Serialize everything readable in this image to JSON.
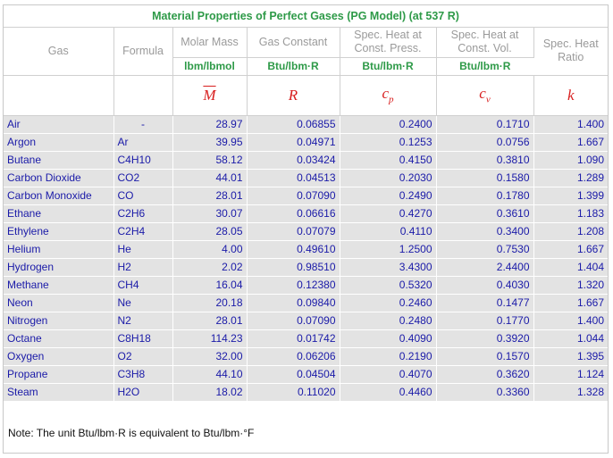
{
  "title": "Material Properties of Perfect Gases (PG Model) (at 537 R)",
  "headers": {
    "gas": "Gas",
    "formula": "Formula",
    "molar_mass": "Molar Mass",
    "gas_constant": "Gas Constant",
    "cp_line1": "Spec. Heat at",
    "cp_line2": "Const. Press.",
    "cv_line1": "Spec. Heat at",
    "cv_line2": "Const. Vol.",
    "k_line1": "Spec. Heat",
    "k_line2": "Ratio"
  },
  "units": {
    "molar_mass": "lbm/lbmol",
    "gas_constant": "Btu/lbm·R",
    "cp": "Btu/lbm·R",
    "cv": "Btu/lbm·R"
  },
  "symbols": {
    "molar_mass": "M",
    "gas_constant": "R",
    "cp_base": "c",
    "cp_sub": "p",
    "cv_base": "c",
    "cv_sub": "v",
    "k": "k"
  },
  "rows": [
    {
      "gas": "Air",
      "formula": "-",
      "M": "28.97",
      "R": "0.06855",
      "cp": "0.2400",
      "cv": "0.1710",
      "k": "1.400"
    },
    {
      "gas": "Argon",
      "formula": "Ar",
      "M": "39.95",
      "R": "0.04971",
      "cp": "0.1253",
      "cv": "0.0756",
      "k": "1.667"
    },
    {
      "gas": "Butane",
      "formula": "C4H10",
      "M": "58.12",
      "R": "0.03424",
      "cp": "0.4150",
      "cv": "0.3810",
      "k": "1.090"
    },
    {
      "gas": "Carbon Dioxide",
      "formula": "CO2",
      "M": "44.01",
      "R": "0.04513",
      "cp": "0.2030",
      "cv": "0.1580",
      "k": "1.289"
    },
    {
      "gas": "Carbon Monoxide",
      "formula": "CO",
      "M": "28.01",
      "R": "0.07090",
      "cp": "0.2490",
      "cv": "0.1780",
      "k": "1.399"
    },
    {
      "gas": "Ethane",
      "formula": "C2H6",
      "M": "30.07",
      "R": "0.06616",
      "cp": "0.4270",
      "cv": "0.3610",
      "k": "1.183"
    },
    {
      "gas": "Ethylene",
      "formula": "C2H4",
      "M": "28.05",
      "R": "0.07079",
      "cp": "0.4110",
      "cv": "0.3400",
      "k": "1.208"
    },
    {
      "gas": "Helium",
      "formula": "He",
      "M": "4.00",
      "R": "0.49610",
      "cp": "1.2500",
      "cv": "0.7530",
      "k": "1.667"
    },
    {
      "gas": "Hydrogen",
      "formula": "H2",
      "M": "2.02",
      "R": "0.98510",
      "cp": "3.4300",
      "cv": "2.4400",
      "k": "1.404"
    },
    {
      "gas": "Methane",
      "formula": "CH4",
      "M": "16.04",
      "R": "0.12380",
      "cp": "0.5320",
      "cv": "0.4030",
      "k": "1.320"
    },
    {
      "gas": "Neon",
      "formula": "Ne",
      "M": "20.18",
      "R": "0.09840",
      "cp": "0.2460",
      "cv": "0.1477",
      "k": "1.667"
    },
    {
      "gas": "Nitrogen",
      "formula": "N2",
      "M": "28.01",
      "R": "0.07090",
      "cp": "0.2480",
      "cv": "0.1770",
      "k": "1.400"
    },
    {
      "gas": "Octane",
      "formula": "C8H18",
      "M": "114.23",
      "R": "0.01742",
      "cp": "0.4090",
      "cv": "0.3920",
      "k": "1.044"
    },
    {
      "gas": "Oxygen",
      "formula": "O2",
      "M": "32.00",
      "R": "0.06206",
      "cp": "0.2190",
      "cv": "0.1570",
      "k": "1.395"
    },
    {
      "gas": "Propane",
      "formula": "C3H8",
      "M": "44.10",
      "R": "0.04504",
      "cp": "0.4070",
      "cv": "0.3620",
      "k": "1.124"
    },
    {
      "gas": "Steam",
      "formula": "H2O",
      "M": "18.02",
      "R": "0.11020",
      "cp": "0.4460",
      "cv": "0.3360",
      "k": "1.328"
    }
  ],
  "note": "Note: The unit Btu/lbm·R is equivalent to Btu/lbm·°F"
}
